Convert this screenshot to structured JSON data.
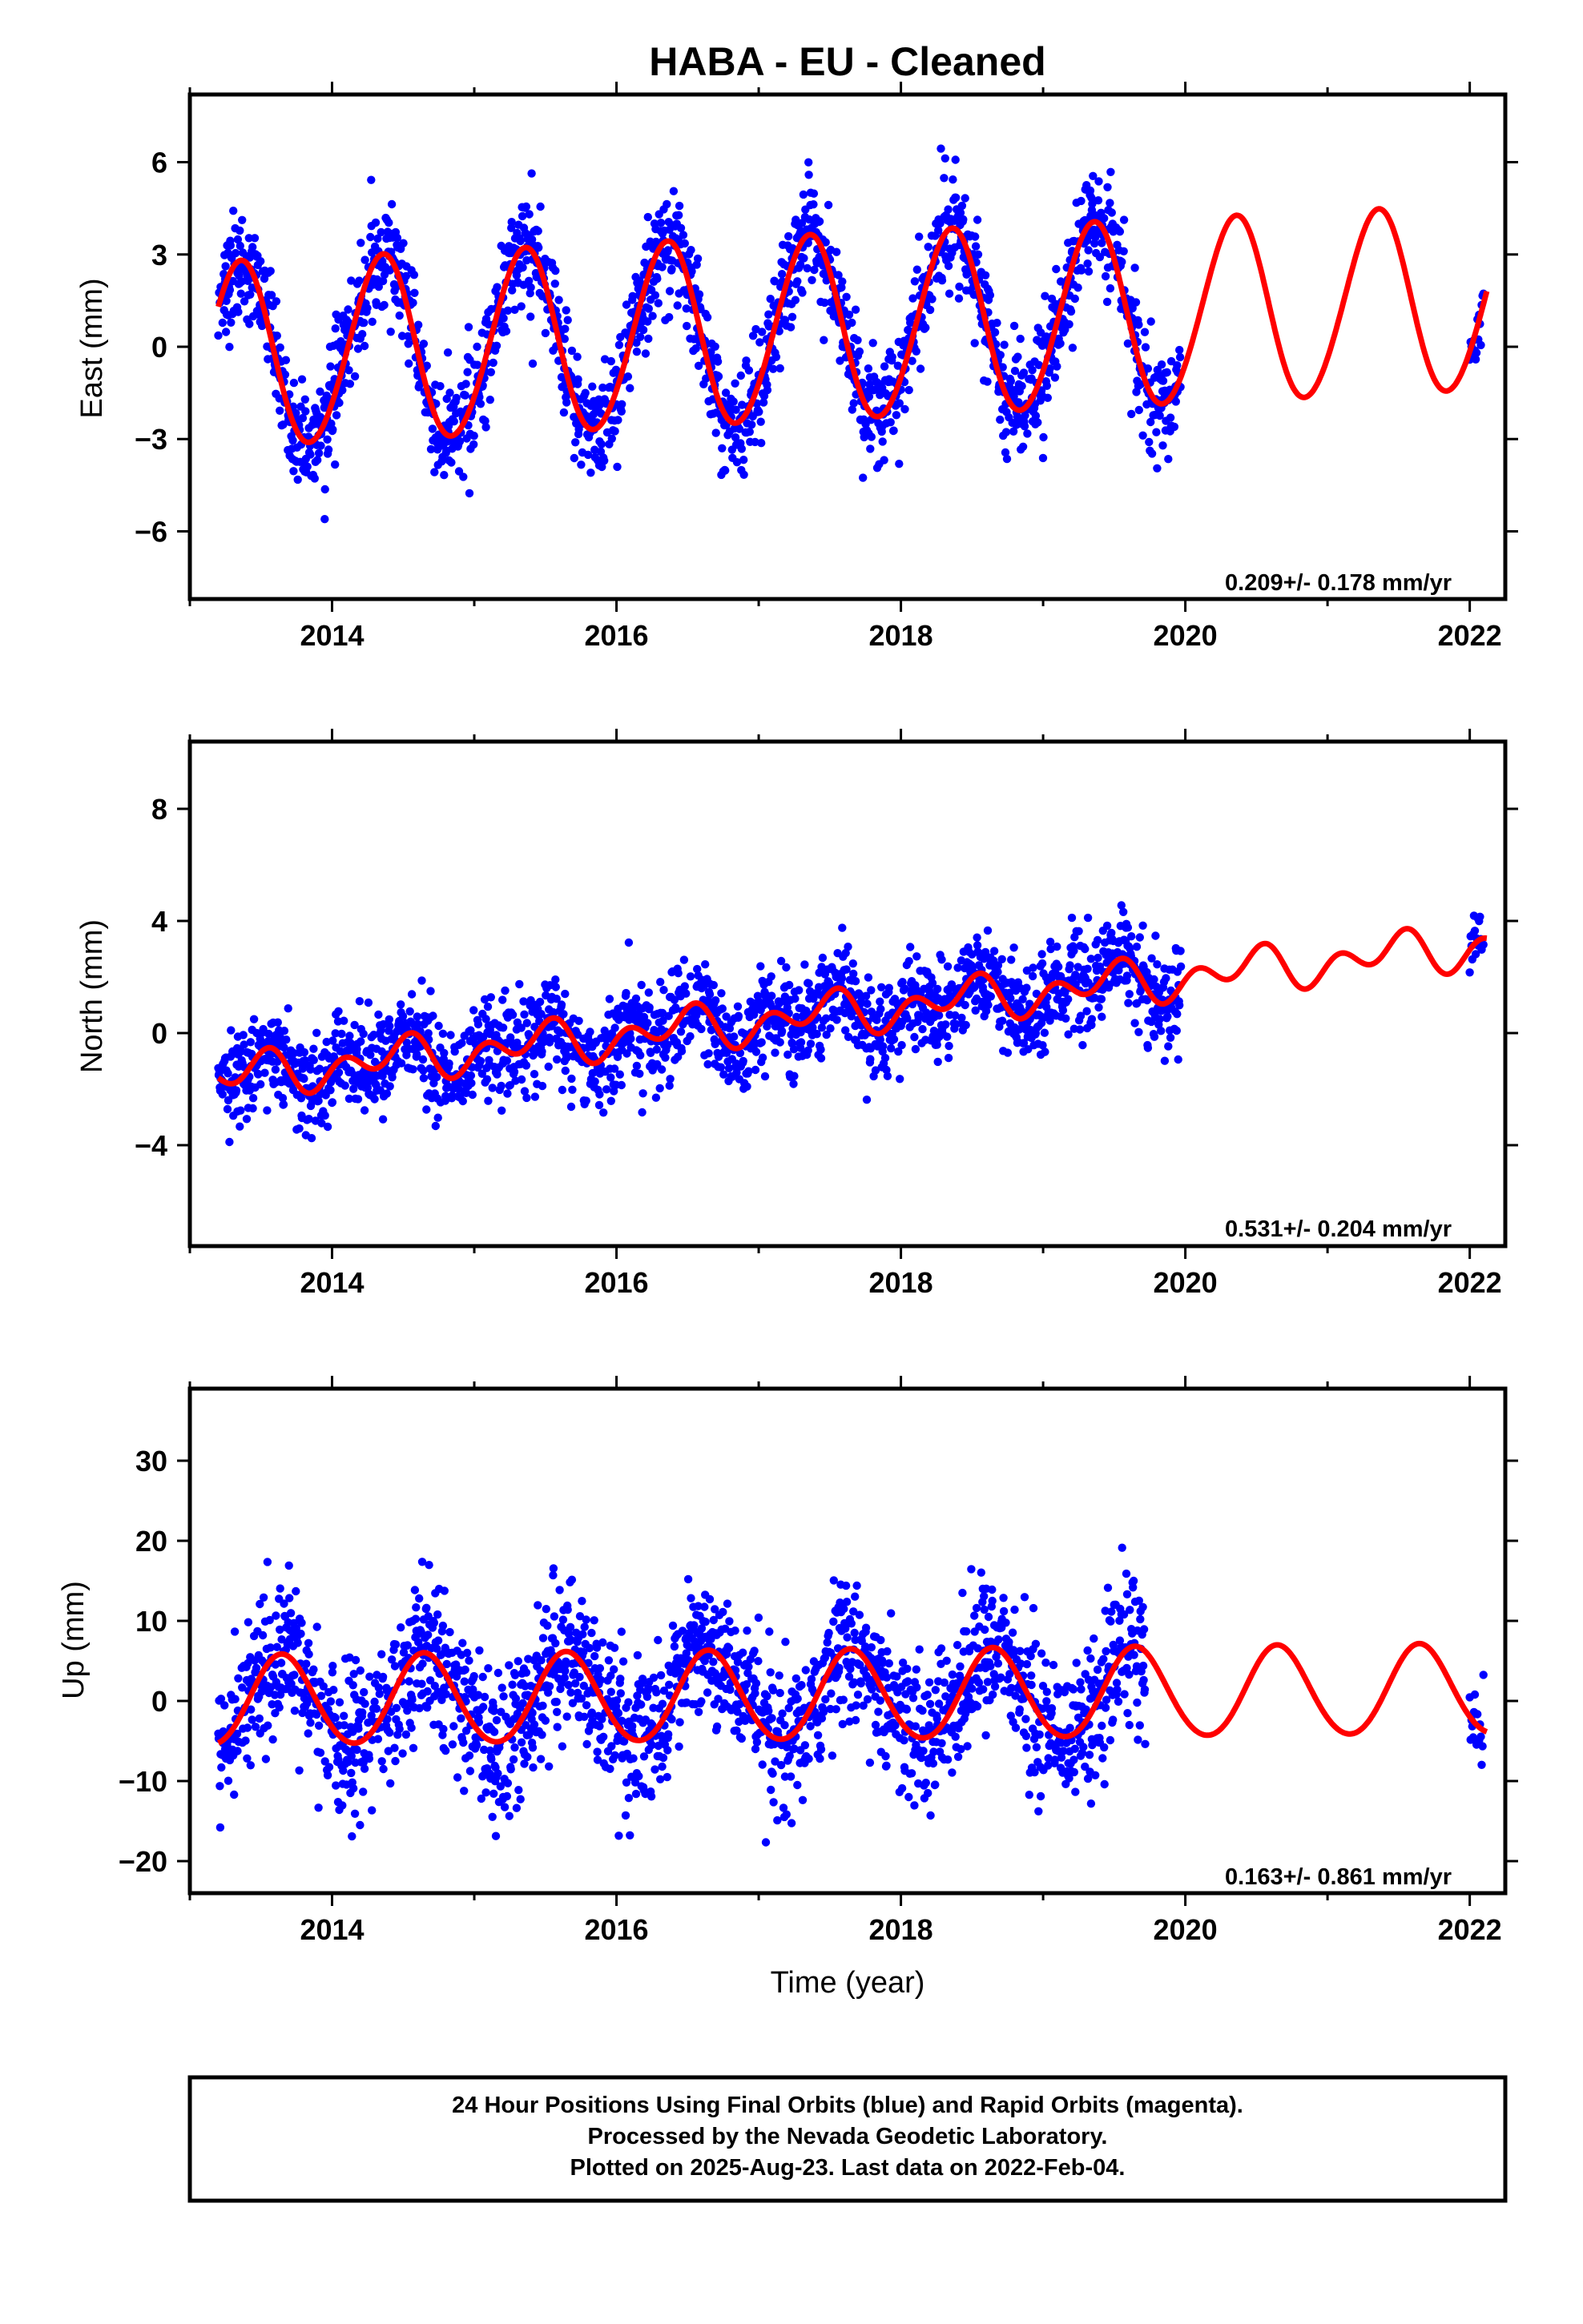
{
  "title": "HABA  - EU - Cleaned",
  "xlabel": "Time (year)",
  "footer": {
    "line1": "24 Hour Positions Using Final Orbits (blue) and Rapid Orbits (magenta).",
    "line2": "Processed by the Nevada Geodetic Laboratory.",
    "line3": "Plotted on 2025-Aug-23. Last data on 2022-Feb-04."
  },
  "colors": {
    "points": "#0000ff",
    "model": "#ff0000",
    "frame": "#000000"
  },
  "chart_data": [
    {
      "type": "scatter",
      "ylabel": "East (mm)",
      "xlim": [
        2013.0,
        2022.25
      ],
      "ylim": [
        -8.2,
        8.2
      ],
      "x_ticks": [
        2014,
        2016,
        2018,
        2020,
        2022
      ],
      "y_ticks": [
        -6,
        -3,
        0,
        3,
        6
      ],
      "y_tick_labels": [
        "−6",
        "−3",
        "0",
        "3",
        "6"
      ],
      "rate_label": "0.209+/- 0.178 mm/yr",
      "data_range": [
        2013.2,
        2019.97
      ],
      "late_range": [
        2022.0,
        2022.1
      ],
      "model": {
        "offset": -0.32,
        "rate": 0.209,
        "annual_amp": 3.0,
        "annual_phase_year": 2013.35,
        "semiannual_amp": 0.15,
        "semiannual_phase_year": 2013.3
      },
      "scatter_sd": 0.9,
      "series": [
        {
          "name": "",
          "kind": "daily-positions"
        },
        {
          "name": "",
          "kind": "model-fit"
        }
      ]
    },
    {
      "type": "scatter",
      "ylabel": "North (mm)",
      "xlim": [
        2013.0,
        2022.25
      ],
      "ylim": [
        -7.6,
        10.4
      ],
      "x_ticks": [
        2014,
        2016,
        2018,
        2020,
        2022
      ],
      "y_ticks": [
        -4,
        0,
        4,
        8
      ],
      "y_tick_labels": [
        "−4",
        "0",
        "4",
        "8"
      ],
      "rate_label": "0.531+/- 0.204 mm/yr",
      "data_range": [
        2013.2,
        2019.97
      ],
      "late_range": [
        2022.0,
        2022.1
      ],
      "model": {
        "offset": -1.6,
        "rate": 0.531,
        "annual_amp": 0.45,
        "annual_phase_year": 2013.45,
        "semiannual_amp": 0.55,
        "semiannual_phase_year": 2013.45
      },
      "scatter_sd": 0.85,
      "series": [
        {
          "name": "",
          "kind": "daily-positions"
        },
        {
          "name": "",
          "kind": "model-fit"
        }
      ]
    },
    {
      "type": "scatter",
      "ylabel": "Up (mm)",
      "xlim": [
        2013.0,
        2022.25
      ],
      "ylim": [
        -24,
        39
      ],
      "x_ticks": [
        2014,
        2016,
        2018,
        2020,
        2022
      ],
      "y_ticks": [
        -20,
        -10,
        0,
        10,
        20,
        30
      ],
      "y_tick_labels": [
        "−20",
        "−10",
        "0",
        "10",
        "20",
        "30"
      ],
      "rate_label": "0.163+/- 0.861 mm/yr",
      "data_range": [
        2013.2,
        2019.72
      ],
      "late_range": [
        2022.0,
        2022.1
      ],
      "model": {
        "offset": -0.1,
        "rate": 0.163,
        "annual_amp": 5.6,
        "annual_phase_year": 2013.65,
        "semiannual_amp": 0.3,
        "semiannual_phase_year": 2013.5
      },
      "scatter_sd": 4.6,
      "series": [
        {
          "name": "",
          "kind": "daily-positions"
        },
        {
          "name": "",
          "kind": "model-fit"
        }
      ]
    }
  ]
}
